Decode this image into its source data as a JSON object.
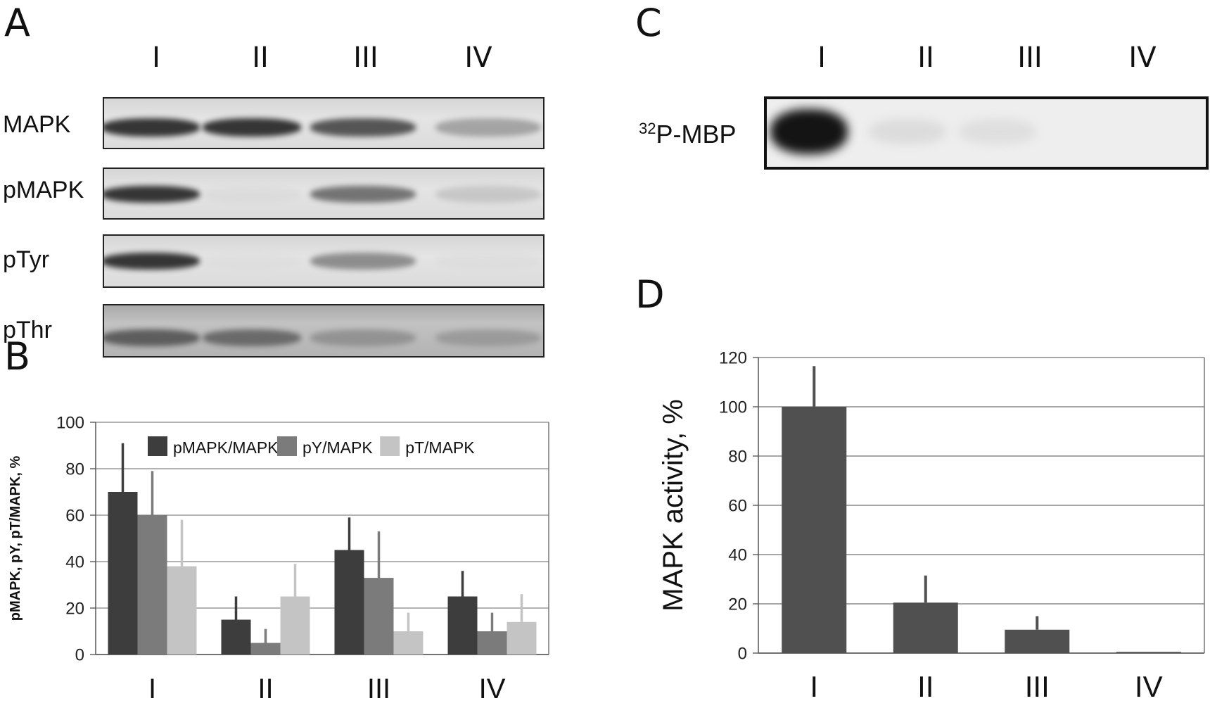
{
  "panels": {
    "A": "A",
    "B": "B",
    "C": "C",
    "D": "D"
  },
  "lanes": [
    "I",
    "II",
    "III",
    "IV"
  ],
  "blot_a": {
    "rows": [
      {
        "label": "MAPK",
        "band_intensity": [
          0.95,
          0.95,
          0.85,
          0.55
        ]
      },
      {
        "label": "pMAPK",
        "band_intensity": [
          0.95,
          0.15,
          0.75,
          0.35
        ]
      },
      {
        "label": "pTyr",
        "band_intensity": [
          0.95,
          0.05,
          0.65,
          0.08
        ]
      },
      {
        "label": "pThr",
        "band_intensity": [
          0.8,
          0.75,
          0.55,
          0.5
        ]
      }
    ]
  },
  "blot_c": {
    "label_superscript": "32",
    "label_main": "P-MBP",
    "band_intensity": [
      1.0,
      0.18,
      0.12,
      0.0
    ]
  },
  "chart_data": [
    {
      "type": "bar",
      "panel": "B",
      "categories": [
        "I",
        "II",
        "III",
        "IV"
      ],
      "ylabel": "pMAPK, pY, pT/MAPK, %",
      "ylim": [
        0,
        100
      ],
      "yticks": [
        0,
        20,
        40,
        60,
        80,
        100
      ],
      "grid": true,
      "legend": "top-right",
      "series": [
        {
          "name": "pMAPK/MAPK",
          "color": "#3d3d3d",
          "values": [
            70,
            15,
            45,
            25
          ],
          "errors": [
            21,
            10,
            14,
            11
          ]
        },
        {
          "name": "pY/MAPK",
          "color": "#7b7b7b",
          "values": [
            60,
            5,
            33,
            10
          ],
          "errors": [
            19,
            6,
            20,
            8
          ]
        },
        {
          "name": "pT/MAPK",
          "color": "#c4c4c4",
          "values": [
            38,
            25,
            10,
            14
          ],
          "errors": [
            20,
            14,
            8,
            12
          ]
        }
      ]
    },
    {
      "type": "bar",
      "panel": "D",
      "categories": [
        "I",
        "II",
        "III",
        "IV"
      ],
      "ylabel": "MAPK activity, %",
      "ylim": [
        0,
        120
      ],
      "yticks": [
        0,
        20,
        40,
        60,
        80,
        100,
        120
      ],
      "grid": true,
      "series": [
        {
          "name": "",
          "color": "#505050",
          "values": [
            100,
            20.5,
            9.5,
            0.5
          ],
          "errors": [
            16.5,
            11,
            5.5,
            0
          ]
        }
      ]
    }
  ]
}
